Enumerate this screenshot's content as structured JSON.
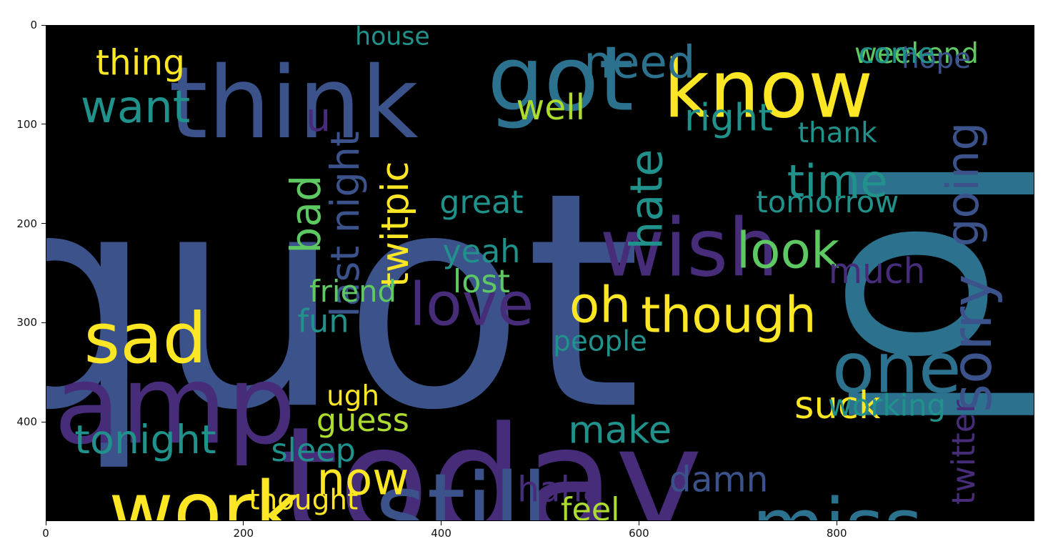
{
  "chart_data": {
    "type": "wordcloud-image",
    "xlim": [
      0,
      1000
    ],
    "ylim": [
      500,
      0
    ],
    "x_ticks": [
      "0",
      "200",
      "400",
      "600",
      "800"
    ],
    "x_tick_values": [
      0,
      200,
      400,
      600,
      800
    ],
    "y_ticks": [
      "0",
      "100",
      "200",
      "300",
      "400"
    ],
    "y_tick_values": [
      0,
      100,
      200,
      300,
      400
    ],
    "background": "#000000",
    "palette": [
      "#3b528b",
      "#472c7a",
      "#21918c",
      "#5ec962",
      "#fde725",
      "#2c728e",
      "#addc30",
      "#440154"
    ],
    "words": [
      {
        "text": "quot",
        "x": 260,
        "y": 300,
        "size": 300,
        "color": "#3b528b"
      },
      {
        "text": "lol",
        "x": 880,
        "y": 270,
        "size": 250,
        "color": "#2c728e",
        "rot": 90
      },
      {
        "text": "today",
        "x": 450,
        "y": 470,
        "size": 150,
        "color": "#472c7a"
      },
      {
        "text": "still",
        "x": 420,
        "y": 495,
        "size": 100,
        "color": "#3b528b"
      },
      {
        "text": "work",
        "x": 160,
        "y": 495,
        "size": 80,
        "color": "#fde725"
      },
      {
        "text": "amp",
        "x": 130,
        "y": 390,
        "size": 110,
        "color": "#472c7a"
      },
      {
        "text": "think",
        "x": 250,
        "y": 85,
        "size": 100,
        "color": "#3b528b"
      },
      {
        "text": "got",
        "x": 520,
        "y": 60,
        "size": 90,
        "color": "#2c728e"
      },
      {
        "text": "know",
        "x": 730,
        "y": 70,
        "size": 80,
        "color": "#fde725"
      },
      {
        "text": "need",
        "x": 600,
        "y": 40,
        "size": 45,
        "color": "#2c728e"
      },
      {
        "text": "wish",
        "x": 650,
        "y": 230,
        "size": 80,
        "color": "#472c7a"
      },
      {
        "text": "miss",
        "x": 800,
        "y": 510,
        "size": 75,
        "color": "#2c728e"
      },
      {
        "text": "one",
        "x": 860,
        "y": 350,
        "size": 70,
        "color": "#2c728e"
      },
      {
        "text": "sad",
        "x": 100,
        "y": 320,
        "size": 70,
        "color": "#fde725"
      },
      {
        "text": "love",
        "x": 430,
        "y": 285,
        "size": 60,
        "color": "#472c7a"
      },
      {
        "text": "though",
        "x": 690,
        "y": 295,
        "size": 50,
        "color": "#fde725"
      },
      {
        "text": "oh",
        "x": 560,
        "y": 285,
        "size": 50,
        "color": "#fde725"
      },
      {
        "text": "sorry",
        "x": 940,
        "y": 320,
        "size": 55,
        "color": "#3b528b",
        "rot": -90
      },
      {
        "text": "look",
        "x": 750,
        "y": 230,
        "size": 50,
        "color": "#5ec962"
      },
      {
        "text": "want",
        "x": 90,
        "y": 85,
        "size": 45,
        "color": "#21918c"
      },
      {
        "text": "time",
        "x": 800,
        "y": 160,
        "size": 45,
        "color": "#21918c"
      },
      {
        "text": "hate",
        "x": 610,
        "y": 175,
        "size": 45,
        "color": "#21918c",
        "rot": -90
      },
      {
        "text": "going",
        "x": 930,
        "y": 160,
        "size": 45,
        "color": "#3b528b",
        "rot": -90
      },
      {
        "text": "thing",
        "x": 95,
        "y": 40,
        "size": 35,
        "color": "#fde725"
      },
      {
        "text": "right",
        "x": 690,
        "y": 95,
        "size": 38,
        "color": "#21918c"
      },
      {
        "text": "well",
        "x": 510,
        "y": 85,
        "size": 35,
        "color": "#addc30"
      },
      {
        "text": "bad",
        "x": 265,
        "y": 190,
        "size": 42,
        "color": "#5ec962",
        "rot": -90
      },
      {
        "text": "last night",
        "x": 305,
        "y": 200,
        "size": 40,
        "color": "#3b528b",
        "rot": -90
      },
      {
        "text": "twitpic",
        "x": 355,
        "y": 200,
        "size": 38,
        "color": "#fde725",
        "rot": -90
      },
      {
        "text": "yeah",
        "x": 440,
        "y": 230,
        "size": 32,
        "color": "#21918c"
      },
      {
        "text": "great",
        "x": 440,
        "y": 180,
        "size": 32,
        "color": "#21918c"
      },
      {
        "text": "lost",
        "x": 440,
        "y": 260,
        "size": 32,
        "color": "#5ec962"
      },
      {
        "text": "make",
        "x": 580,
        "y": 410,
        "size": 38,
        "color": "#21918c"
      },
      {
        "text": "damn",
        "x": 680,
        "y": 460,
        "size": 35,
        "color": "#3b528b"
      },
      {
        "text": "haha",
        "x": 520,
        "y": 470,
        "size": 35,
        "color": "#472c7a"
      },
      {
        "text": "feel",
        "x": 550,
        "y": 490,
        "size": 32,
        "color": "#addc30"
      },
      {
        "text": "now",
        "x": 320,
        "y": 460,
        "size": 45,
        "color": "#fde725"
      },
      {
        "text": "tonight",
        "x": 100,
        "y": 420,
        "size": 40,
        "color": "#21918c"
      },
      {
        "text": "guess",
        "x": 320,
        "y": 400,
        "size": 32,
        "color": "#addc30"
      },
      {
        "text": "ugh",
        "x": 310,
        "y": 375,
        "size": 28,
        "color": "#fde725"
      },
      {
        "text": "sleep",
        "x": 270,
        "y": 430,
        "size": 32,
        "color": "#21918c"
      },
      {
        "text": "thought",
        "x": 260,
        "y": 480,
        "size": 28,
        "color": "#fde725"
      },
      {
        "text": "friend",
        "x": 310,
        "y": 270,
        "size": 30,
        "color": "#5ec962"
      },
      {
        "text": "fun",
        "x": 280,
        "y": 300,
        "size": 32,
        "color": "#21918c"
      },
      {
        "text": "people",
        "x": 560,
        "y": 320,
        "size": 28,
        "color": "#21918c"
      },
      {
        "text": "suck",
        "x": 800,
        "y": 385,
        "size": 38,
        "color": "#fde725"
      },
      {
        "text": "working",
        "x": 850,
        "y": 385,
        "size": 30,
        "color": "#21918c"
      },
      {
        "text": "twitter",
        "x": 930,
        "y": 430,
        "size": 32,
        "color": "#472c7a",
        "rot": -90
      },
      {
        "text": "much",
        "x": 840,
        "y": 250,
        "size": 35,
        "color": "#472c7a"
      },
      {
        "text": "tomorrow",
        "x": 790,
        "y": 180,
        "size": 30,
        "color": "#21918c"
      },
      {
        "text": "thank",
        "x": 800,
        "y": 110,
        "size": 28,
        "color": "#21918c"
      },
      {
        "text": "weekend",
        "x": 880,
        "y": 30,
        "size": 28,
        "color": "#5ec962"
      },
      {
        "text": "hope",
        "x": 900,
        "y": 35,
        "size": 28,
        "color": "#3b528b"
      },
      {
        "text": "come",
        "x": 860,
        "y": 30,
        "size": 28,
        "color": "#21918c"
      },
      {
        "text": "u",
        "x": 275,
        "y": 95,
        "size": 40,
        "color": "#472c7a"
      },
      {
        "text": "house",
        "x": 350,
        "y": 12,
        "size": 25,
        "color": "#21918c"
      }
    ],
    "caption": "lol"
  }
}
